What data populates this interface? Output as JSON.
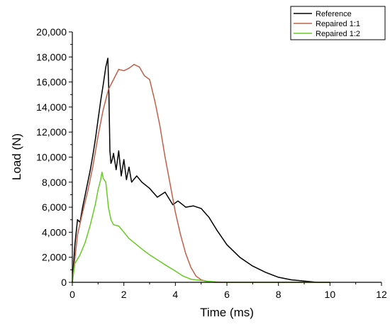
{
  "chart_data": {
    "type": "line",
    "xlabel": "Time (ms)",
    "ylabel": "Load (N)",
    "xlim": [
      0,
      12
    ],
    "ylim": [
      0,
      20000
    ],
    "x_ticks": [
      0,
      2,
      4,
      6,
      8,
      10,
      12
    ],
    "x_tick_labels": [
      "0",
      "2",
      "4",
      "6",
      "8",
      "10",
      "12"
    ],
    "y_ticks": [
      0,
      2000,
      4000,
      6000,
      8000,
      10000,
      12000,
      14000,
      16000,
      18000,
      20000
    ],
    "y_tick_labels": [
      "0",
      "2,000",
      "4,000",
      "6,000",
      "8,000",
      "10,000",
      "12,000",
      "14,000",
      "16,000",
      "18,000",
      "20,000"
    ],
    "grid": false,
    "legend_position": "top-right",
    "series": [
      {
        "name": "Reference",
        "color": "#000000",
        "x": [
          0,
          0.1,
          0.2,
          0.3,
          0.4,
          0.5,
          0.6,
          0.7,
          0.8,
          0.9,
          1.0,
          1.1,
          1.2,
          1.3,
          1.38,
          1.42,
          1.46,
          1.5,
          1.55,
          1.6,
          1.7,
          1.8,
          1.9,
          2.0,
          2.1,
          2.2,
          2.3,
          2.5,
          2.7,
          3.0,
          3.3,
          3.6,
          3.9,
          4.1,
          4.4,
          4.7,
          5.0,
          5.3,
          5.6,
          6.0,
          6.5,
          7.0,
          7.5,
          8.0,
          8.5,
          9.0,
          9.5,
          10.0
        ],
        "y": [
          0,
          3000,
          5000,
          4800,
          6000,
          7000,
          8000,
          9000,
          10200,
          11500,
          13000,
          14500,
          15800,
          17200,
          17900,
          15000,
          10500,
          9500,
          9800,
          10300,
          9000,
          10500,
          8500,
          9800,
          8200,
          9200,
          8000,
          8500,
          8000,
          7500,
          6800,
          7200,
          6200,
          6500,
          6000,
          6100,
          5900,
          5200,
          4200,
          3000,
          2000,
          1300,
          800,
          400,
          200,
          100,
          0,
          0
        ]
      },
      {
        "name": "Repaired 1:1",
        "color": "#c0604a",
        "x": [
          0,
          0.2,
          0.4,
          0.6,
          0.8,
          1.0,
          1.2,
          1.4,
          1.6,
          1.8,
          2.0,
          2.2,
          2.4,
          2.6,
          2.8,
          3.0,
          3.2,
          3.4,
          3.6,
          3.8,
          4.0,
          4.2,
          4.4,
          4.6,
          4.8,
          5.0,
          5.2,
          5.5,
          6.0,
          7.0,
          8.0,
          9.0,
          10.0
        ],
        "y": [
          0,
          3800,
          5600,
          7300,
          9300,
          11700,
          13800,
          15400,
          16200,
          17000,
          16900,
          17100,
          17400,
          17200,
          16500,
          16200,
          14500,
          12500,
          10000,
          7800,
          5600,
          3800,
          2300,
          1200,
          500,
          200,
          80,
          0,
          0,
          0,
          0,
          0,
          0
        ]
      },
      {
        "name": "Repaired 1:2",
        "color": "#66cc22",
        "x": [
          0,
          0.1,
          0.3,
          0.5,
          0.7,
          0.9,
          1.0,
          1.1,
          1.15,
          1.2,
          1.3,
          1.4,
          1.5,
          1.6,
          1.8,
          2.0,
          2.2,
          2.5,
          2.8,
          3.0,
          3.3,
          3.6,
          4.0,
          4.3,
          4.6,
          5.0,
          5.3,
          5.6,
          6.0,
          6.5,
          7.0,
          8.0,
          9.0,
          10.0
        ],
        "y": [
          0,
          1500,
          2200,
          3200,
          4600,
          6300,
          7400,
          8200,
          8800,
          8300,
          8000,
          6000,
          5000,
          4600,
          4500,
          4000,
          3500,
          3000,
          2500,
          2200,
          1800,
          1400,
          900,
          500,
          250,
          150,
          80,
          30,
          0,
          0,
          0,
          0,
          0,
          0
        ]
      }
    ]
  }
}
